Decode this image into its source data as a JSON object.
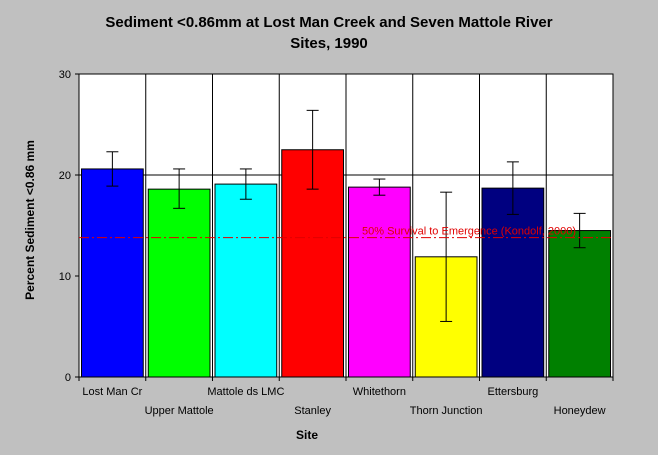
{
  "chart_data": {
    "type": "bar",
    "title_line1": "Sediment <0.86mm at Lost Man Creek and Seven Mattole River",
    "title_line2": "Sites, 1990",
    "xlabel": "Site",
    "ylabel": "Percent Sediment <0.86 mm",
    "ylim": [
      0,
      30
    ],
    "yticks": [
      "0",
      "10",
      "20",
      "30"
    ],
    "grid": "vertical category lines and horizontal line at 20",
    "categories": [
      "Lost Man Cr",
      "Upper Mattole",
      "Mattole ds LMC",
      "Stanley",
      "Whitethorn",
      "Thorn Junction",
      "Ettersburg",
      "Honeydew"
    ],
    "values": [
      20.6,
      18.6,
      19.1,
      22.5,
      18.8,
      11.9,
      18.7,
      14.5
    ],
    "error_low": [
      18.9,
      16.7,
      17.6,
      18.6,
      18.0,
      5.5,
      16.1,
      12.8
    ],
    "error_high": [
      22.3,
      20.6,
      20.6,
      26.4,
      19.6,
      18.3,
      21.3,
      16.2
    ],
    "colors": [
      "#0000ff",
      "#00ff00",
      "#00ffff",
      "#ff0000",
      "#ff00ff",
      "#ffff00",
      "#000080",
      "#008000"
    ],
    "reference_line": {
      "value": 13.8,
      "label": "50% Survival to Emergence (Kondolf, 2000)",
      "color": "#e00000"
    }
  }
}
